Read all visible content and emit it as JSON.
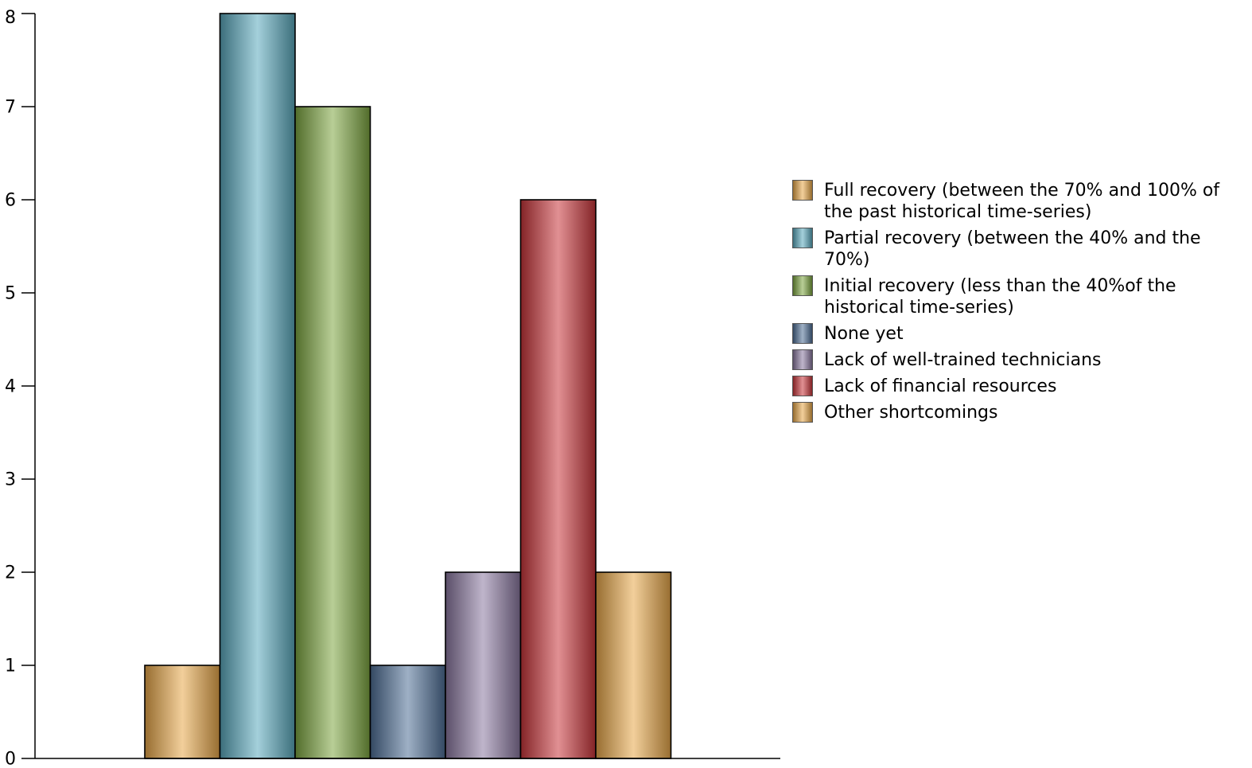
{
  "chart_data": {
    "type": "bar",
    "categories": [
      "Full recovery (between the 70% and 100% of the past historical time-series)",
      "Partial recovery (between the 40% and the 70%)",
      "Initial recovery (less than the 40%of the historical time-series)",
      "None yet",
      "Lack of well-trained technicians",
      "Lack of financial resources",
      "Other shortcomings"
    ],
    "values": [
      1,
      8,
      7,
      1,
      2,
      6,
      2
    ],
    "ylim": [
      0,
      8
    ],
    "yticks": [
      "0",
      "1",
      "2",
      "3",
      "4",
      "5",
      "6",
      "7",
      "8"
    ],
    "grid": false,
    "legend_position": "right",
    "colors": [
      "#e8a84a",
      "#5aa9bd",
      "#7da640",
      "#4f6f96",
      "#8a78a0",
      "#c9363a",
      "#e8a84a"
    ],
    "title": "",
    "xlabel": "",
    "ylabel": ""
  },
  "legend": [
    {
      "label": "Full recovery (between the 70% and 100% of the past historical time-series)",
      "color": "#e8a84a"
    },
    {
      "label": "Partial recovery (between the 40% and the 70%)",
      "color": "#5aa9bd"
    },
    {
      "label": "Initial recovery (less than the 40%of the historical time-series)",
      "color": "#7da640"
    },
    {
      "label": "None yet",
      "color": "#4f6f96"
    },
    {
      "label": "Lack of well-trained technicians",
      "color": "#8a78a0"
    },
    {
      "label": "Lack of financial resources",
      "color": "#c9363a"
    },
    {
      "label": " Other shortcomings",
      "color": "#e8a84a"
    }
  ]
}
